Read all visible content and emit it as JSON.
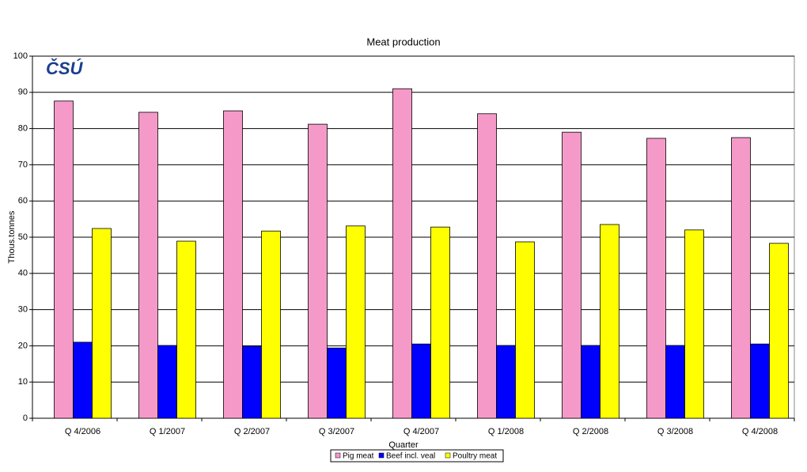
{
  "chart_data": {
    "type": "bar",
    "title": "Meat production",
    "logo": "ČSÚ",
    "x_label": "Quarter",
    "y_label": "Thous.tonnes",
    "categories": [
      "Q 4/2006",
      "Q 1/2007",
      "Q 2/2007",
      "Q 3/2007",
      "Q 4/2007",
      "Q 1/2008",
      "Q 2/2008",
      "Q 3/2008",
      "Q 4/2008"
    ],
    "series": [
      {
        "name": "Pig meat",
        "color": "#f59ac8",
        "values": [
          87.6,
          84.5,
          84.9,
          81.2,
          91.0,
          84.1,
          79.0,
          77.3,
          77.5
        ]
      },
      {
        "name": "Beef incl. veal",
        "color": "#0000ff",
        "values": [
          21.0,
          20.1,
          19.9,
          19.4,
          20.5,
          20.1,
          20.1,
          20.1,
          20.5
        ]
      },
      {
        "name": "Poultry meat",
        "color": "#ffff00",
        "values": [
          52.4,
          48.9,
          51.7,
          53.1,
          52.8,
          48.7,
          53.5,
          52.0,
          48.3
        ]
      }
    ],
    "ylim": [
      0,
      100
    ],
    "yticks": [
      0,
      10,
      20,
      30,
      40,
      50,
      60,
      70,
      80,
      90,
      100
    ],
    "grid": true,
    "legend": "bottom"
  }
}
